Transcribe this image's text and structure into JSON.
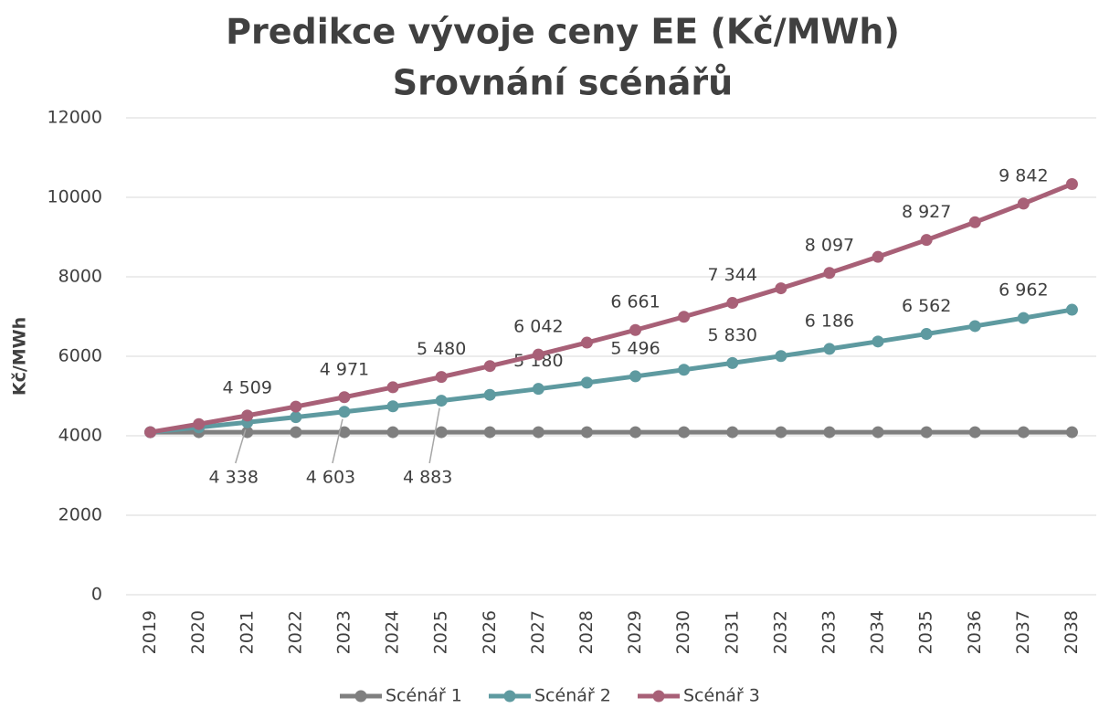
{
  "chart_data": {
    "type": "line",
    "title": [
      "Predikce vývoje ceny EE (Kč/MWh)",
      "Srovnání scénářů"
    ],
    "y_label": "Kč/MWh",
    "categories": [
      "2019",
      "2020",
      "2021",
      "2022",
      "2023",
      "2024",
      "2025",
      "2026",
      "2027",
      "2028",
      "2029",
      "2030",
      "2031",
      "2032",
      "2033",
      "2034",
      "2035",
      "2036",
      "2037",
      "2038"
    ],
    "series": [
      {
        "name": "Scénář 1",
        "color": "#7f7f7f",
        "values": [
          4090,
          4090,
          4090,
          4090,
          4090,
          4090,
          4090,
          4090,
          4090,
          4090,
          4090,
          4090,
          4090,
          4090,
          4090,
          4090,
          4090,
          4090,
          4090,
          4090
        ]
      },
      {
        "name": "Scénář 2",
        "color": "#5e9aa0",
        "values": [
          4089,
          4212,
          4338,
          4468,
          4603,
          4741,
          4883,
          5030,
          5180,
          5336,
          5496,
          5661,
          5830,
          6006,
          6186,
          6372,
          6562,
          6760,
          6962,
          7171
        ],
        "value_labels": [
          null,
          null,
          "4 338",
          null,
          "4 603",
          null,
          "4 883",
          null,
          "5 180",
          null,
          "5 496",
          null,
          "5 830",
          null,
          "6 186",
          null,
          "6 562",
          null,
          "6 962",
          null
        ]
      },
      {
        "name": "Scénář 3",
        "color": "#a86077",
        "values": [
          4090,
          4294,
          4509,
          4734,
          4971,
          5220,
          5480,
          5754,
          6042,
          6344,
          6661,
          6994,
          7344,
          7711,
          8097,
          8502,
          8927,
          9373,
          9842,
          10334
        ],
        "value_labels": [
          null,
          null,
          "4 509",
          null,
          "4 971",
          null,
          "5 480",
          null,
          "6 042",
          null,
          "6 661",
          null,
          "7 344",
          null,
          "8 097",
          null,
          "8 927",
          null,
          "9 842",
          null
        ]
      }
    ],
    "ylim": [
      0,
      12000
    ],
    "yticks": [
      0,
      2000,
      4000,
      6000,
      8000,
      10000,
      12000
    ],
    "grid": true,
    "legend": "bottom"
  }
}
